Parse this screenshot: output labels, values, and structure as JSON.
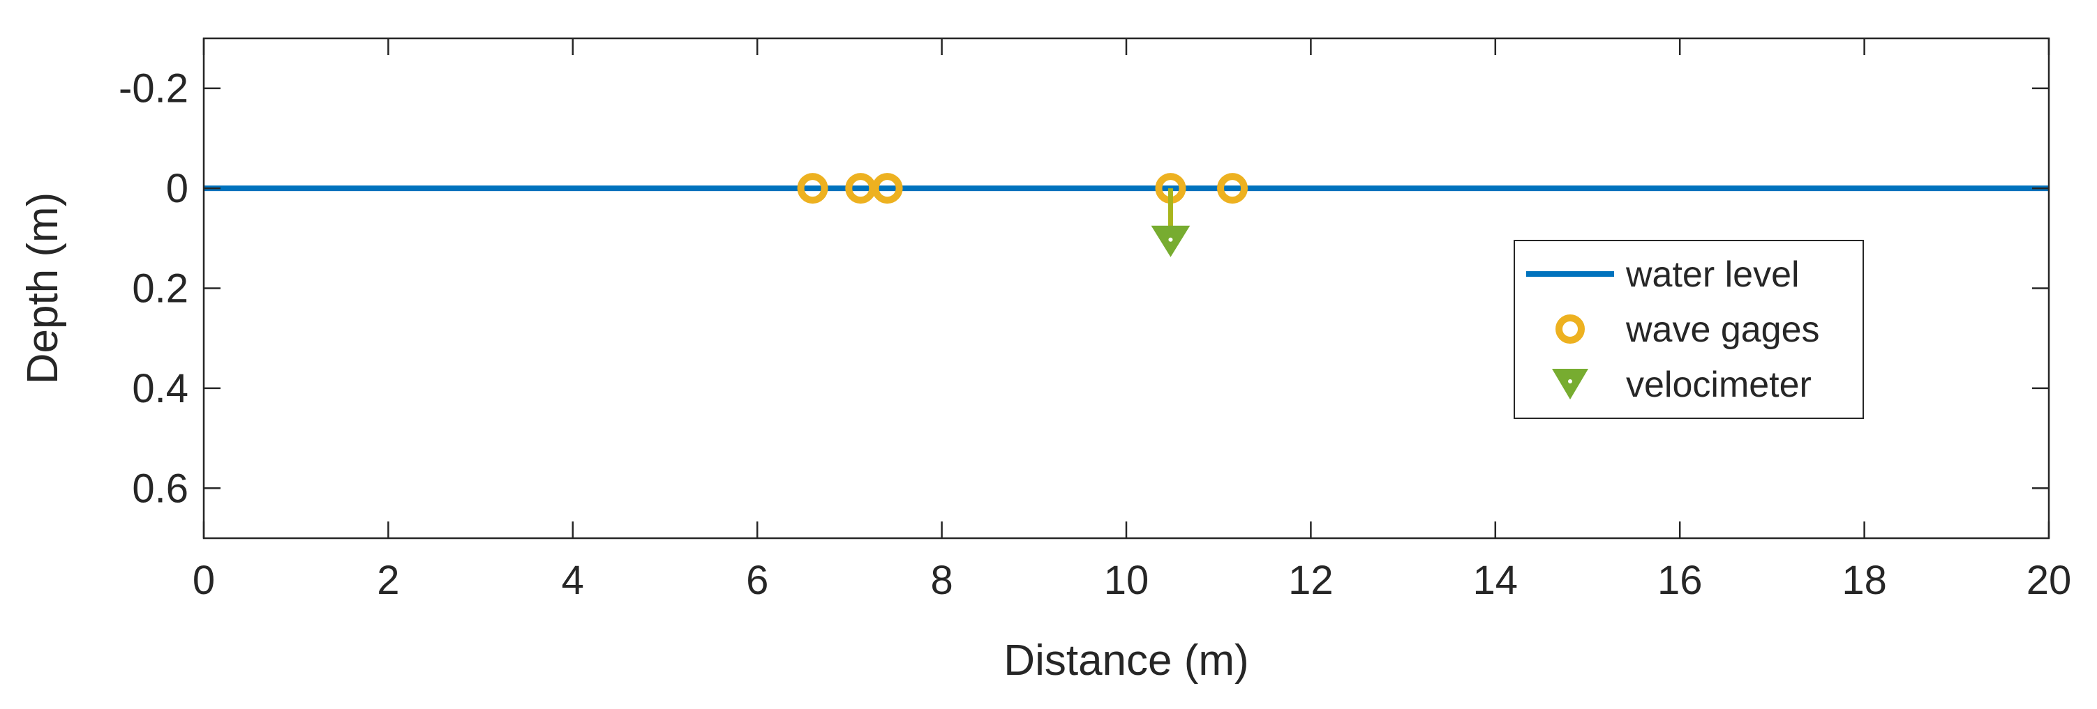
{
  "chart_data": {
    "type": "line",
    "xlabel": "Distance (m)",
    "ylabel": "Depth (m)",
    "xlim": [
      0,
      20
    ],
    "ylim": [
      -0.3,
      0.7
    ],
    "y_reversed": true,
    "xticks": [
      0,
      2,
      4,
      6,
      8,
      10,
      12,
      14,
      16,
      18,
      20
    ],
    "yticks": [
      -0.2,
      0,
      0.2,
      0.4,
      0.6
    ],
    "ytick_labels": [
      "-0.2",
      "0",
      "0.2",
      "0.4",
      "0.6"
    ],
    "grid": false,
    "legend_position": "right",
    "series": [
      {
        "name": "water level",
        "kind": "line",
        "color": "#0072BD",
        "x": [
          0,
          20
        ],
        "y": [
          0,
          0
        ]
      },
      {
        "name": "wave gages",
        "kind": "marker",
        "marker": "circle",
        "color": "#EDB120",
        "x": [
          6.6,
          7.12,
          7.41,
          10.48,
          11.15
        ],
        "y": [
          0,
          0,
          0,
          0,
          0
        ]
      },
      {
        "name": "velocimeter",
        "kind": "marker",
        "marker": "triangle-down",
        "color": "#77AC30",
        "stem_color": "#A8B51C",
        "x": [
          10.48
        ],
        "y": [
          0.1
        ]
      }
    ]
  }
}
